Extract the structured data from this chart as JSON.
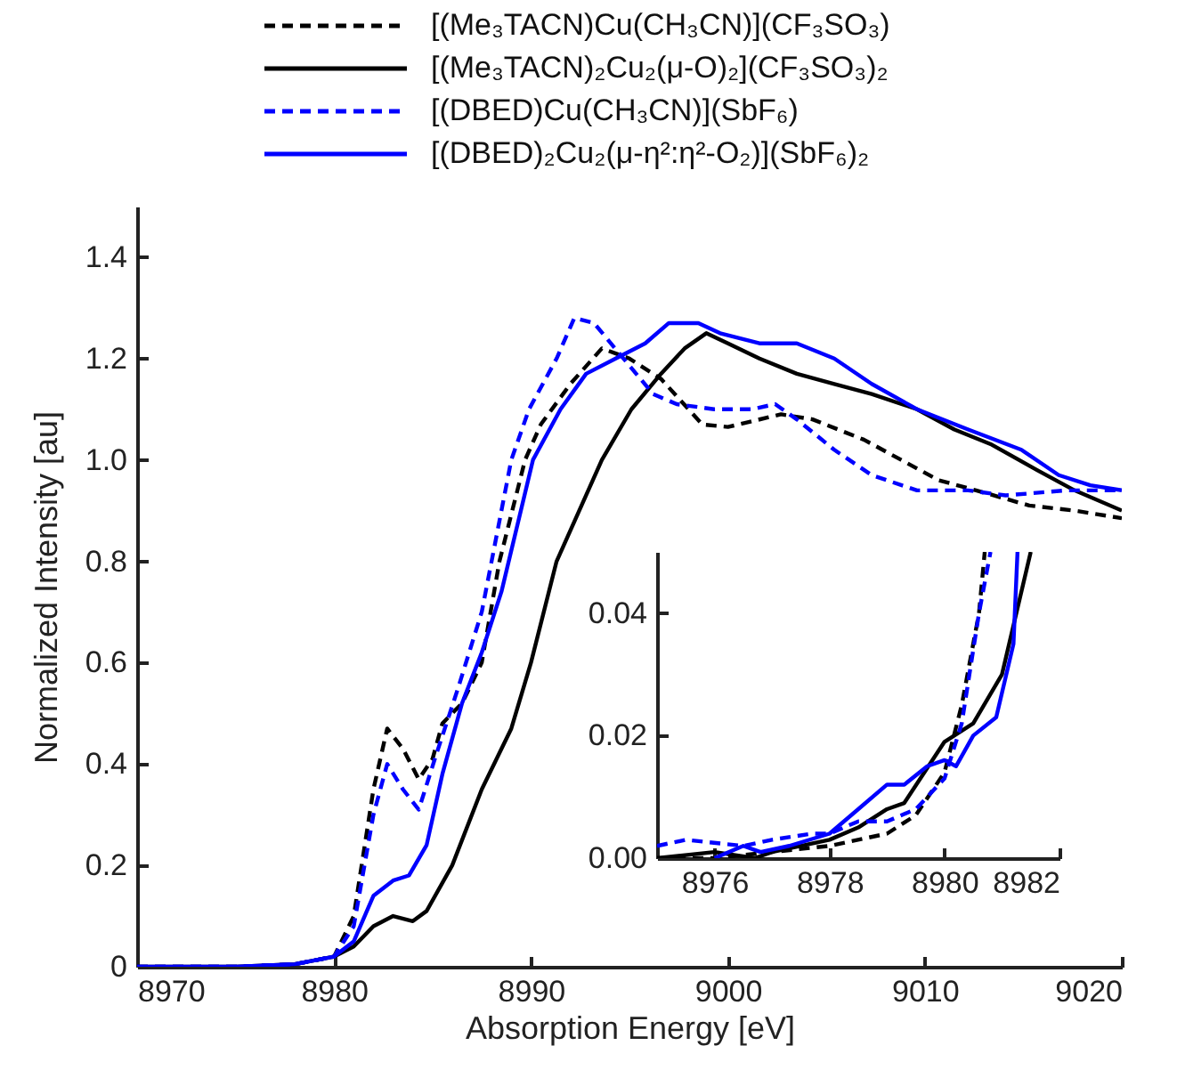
{
  "chart_data": [
    {
      "type": "line",
      "xlabel": "Absorption Energy [eV]",
      "ylabel": "Normalized Intensity [au]",
      "legend": "top",
      "grid": false,
      "xlim": [
        8970,
        9020
      ],
      "xticks": [
        8970,
        8980,
        8990,
        9000,
        9010,
        9020
      ],
      "ylim": [
        0,
        1.5
      ],
      "yticks": [
        0,
        0.2,
        0.4,
        0.6,
        0.8,
        {
          "value": 1,
          "label": "1.0"
        },
        1.2,
        1.4
      ],
      "series": [
        {
          "name": "[(Me₃TACN)Cu(CH₃CN)](CF₃SO₃)",
          "color": "#000000",
          "line_style": "dashed",
          "x": [
            8970,
            8975,
            8978,
            8980,
            8981,
            8982,
            8982.7,
            8983.5,
            8984.3,
            8985,
            8985.5,
            8986.5,
            8987.5,
            8988.4,
            8989.7,
            8990.5,
            8992,
            8993.6,
            8995,
            8996.6,
            8998.7,
            9000,
            9002.7,
            9004.3,
            9006.9,
            9008.8,
            9010.7,
            9012.6,
            9015.3,
            9017.6,
            9020
          ],
          "values": [
            0,
            0,
            0.005,
            0.02,
            0.1,
            0.35,
            0.47,
            0.43,
            0.37,
            0.41,
            0.48,
            0.52,
            0.6,
            0.8,
            1.0,
            1.07,
            1.15,
            1.22,
            1.2,
            1.16,
            1.07,
            1.065,
            1.09,
            1.08,
            1.04,
            1.0,
            0.96,
            0.94,
            0.91,
            0.9,
            0.885
          ]
        },
        {
          "name": "[(Me₃TACN)₂Cu₂(μ-O)₂](CF₃SO₃)₂",
          "color": "#000000",
          "line_style": "solid",
          "x": [
            8970,
            8975,
            8978,
            8980,
            8981,
            8982,
            8983,
            8984,
            8984.7,
            8986,
            8987.5,
            8989,
            8990,
            8991.3,
            8993.6,
            8995.1,
            8996.6,
            8997.8,
            8998.9,
            9000,
            9001.6,
            9003.5,
            9005.4,
            9007.3,
            9009.6,
            9011.5,
            9013.4,
            9015.7,
            9017.6,
            9020
          ],
          "values": [
            0,
            0,
            0.005,
            0.02,
            0.04,
            0.08,
            0.1,
            0.09,
            0.11,
            0.2,
            0.35,
            0.47,
            0.6,
            0.8,
            1.0,
            1.1,
            1.17,
            1.22,
            1.25,
            1.23,
            1.2,
            1.17,
            1.15,
            1.13,
            1.1,
            1.06,
            1.03,
            0.98,
            0.94,
            0.9
          ]
        },
        {
          "name": "[(DBED)Cu(CH₃CN)](SbF₆)",
          "color": "#0000ff",
          "line_style": "dashed",
          "x": [
            8970,
            8975,
            8978,
            8980,
            8981,
            8982,
            8982.7,
            8983.5,
            8984.3,
            8985.2,
            8986.3,
            8987.5,
            8989,
            8989.9,
            8991.3,
            8992.2,
            8993.2,
            8994.7,
            8996.2,
            8997.4,
            8999.3,
            9001.2,
            9002.4,
            9003.5,
            9005.4,
            9007.3,
            9009.6,
            9012.2,
            9014.1,
            9017.2,
            9020
          ],
          "values": [
            0,
            0,
            0.005,
            0.02,
            0.08,
            0.3,
            0.4,
            0.35,
            0.31,
            0.42,
            0.55,
            0.7,
            1.0,
            1.1,
            1.2,
            1.28,
            1.27,
            1.2,
            1.13,
            1.11,
            1.1,
            1.1,
            1.11,
            1.08,
            1.02,
            0.97,
            0.94,
            0.94,
            0.93,
            0.94,
            0.94
          ]
        },
        {
          "name": "[(DBED)₂Cu₂(μ-η²:η²-O₂)](SbF₆)₂",
          "color": "#0000ff",
          "line_style": "solid",
          "x": [
            8970,
            8975,
            8978,
            8980,
            8981,
            8982,
            8983,
            8983.8,
            8984.7,
            8985.5,
            8986.5,
            8987.5,
            8988.5,
            8990.1,
            8991.5,
            8992.8,
            8994.3,
            8995.8,
            8997,
            8998.5,
            8999.6,
            9001.6,
            9003.5,
            9005.4,
            9007.3,
            9009.6,
            9012.2,
            9014.9,
            9016.8,
            9018.4,
            9020
          ],
          "values": [
            0,
            0,
            0.005,
            0.02,
            0.05,
            0.14,
            0.17,
            0.18,
            0.24,
            0.38,
            0.52,
            0.62,
            0.74,
            1.0,
            1.1,
            1.17,
            1.2,
            1.23,
            1.27,
            1.27,
            1.25,
            1.23,
            1.23,
            1.2,
            1.15,
            1.1,
            1.06,
            1.02,
            0.97,
            0.95,
            0.94
          ]
        }
      ]
    },
    {
      "type": "line",
      "xlim": [
        8975,
        8982
      ],
      "xticks": [
        8976,
        8978,
        8980,
        8982
      ],
      "ylim": [
        0,
        0.05
      ],
      "yticks": [
        {
          "value": 0,
          "label": "0.00"
        },
        {
          "value": 0.02,
          "label": "0.02"
        },
        {
          "value": 0.04,
          "label": "0.04"
        }
      ],
      "grid": false,
      "series": [
        {
          "color": "#000000",
          "line_style": "dashed",
          "x": [
            8975,
            8976,
            8977,
            8978,
            8979,
            8979.5,
            8980,
            8980.3,
            8980.6,
            8980.7
          ],
          "values": [
            0,
            0,
            0.001,
            0.002,
            0.004,
            0.007,
            0.014,
            0.025,
            0.04,
            0.05
          ]
        },
        {
          "color": "#000000",
          "line_style": "solid",
          "x": [
            8975,
            8976,
            8976.7,
            8977,
            8978,
            8978.5,
            8979,
            8979.3,
            8980,
            8980.5,
            8981,
            8981.5
          ],
          "values": [
            0,
            0.001,
            0,
            0.001,
            0.003,
            0.005,
            0.008,
            0.009,
            0.019,
            0.022,
            0.03,
            0.05
          ]
        },
        {
          "color": "#0000ff",
          "line_style": "dashed",
          "x": [
            8975,
            8975.5,
            8976.5,
            8977,
            8977.7,
            8978,
            8978.5,
            8979,
            8979.5,
            8980,
            8980.3,
            8980.6,
            8980.8
          ],
          "values": [
            0.002,
            0.003,
            0.002,
            0.003,
            0.004,
            0.004,
            0.006,
            0.006,
            0.008,
            0.013,
            0.022,
            0.04,
            0.05
          ]
        },
        {
          "color": "#0000ff",
          "line_style": "solid",
          "x": [
            8976,
            8976.5,
            8976.8,
            8977.3,
            8978,
            8978.5,
            8979,
            8979.3,
            8979.7,
            8980,
            8980.2,
            8980.5,
            8980.9,
            8981.2,
            8981.27
          ],
          "values": [
            0,
            0.002,
            0.001,
            0.002,
            0.004,
            0.008,
            0.012,
            0.012,
            0.015,
            0.016,
            0.015,
            0.02,
            0.023,
            0.035,
            0.05
          ]
        }
      ]
    }
  ]
}
